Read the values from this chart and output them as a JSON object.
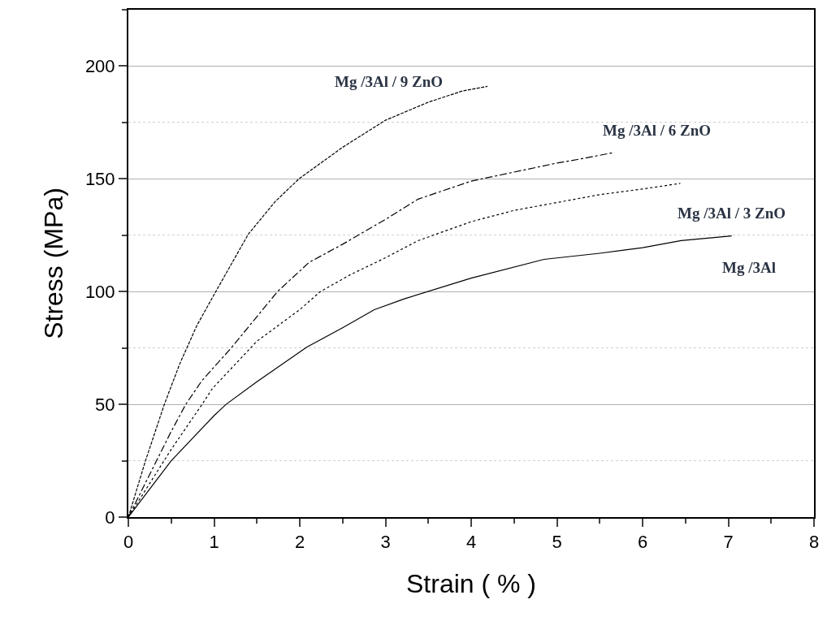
{
  "chart_data": {
    "type": "line",
    "xlabel": "Strain ( % )",
    "ylabel": "Stress (MPa)",
    "xlim": [
      0,
      8
    ],
    "xticks": [
      0,
      1,
      2,
      3,
      4,
      5,
      6,
      7,
      8
    ],
    "ylim": [
      0,
      225
    ],
    "yticks": [
      0,
      50,
      100,
      150,
      200
    ],
    "grid": "y",
    "legend": false,
    "marker": "none",
    "series": [
      {
        "name": "Mg /3Al",
        "color": "#000000",
        "line_style": "solid",
        "x": [
          0,
          0.5,
          1,
          1.14,
          1.5,
          2.08,
          2.5,
          2.87,
          3.22,
          4,
          4.85,
          5.5,
          6,
          6.45,
          7.04
        ],
        "values": [
          0,
          25,
          45,
          50,
          60,
          75.3,
          84,
          92,
          96.8,
          106,
          114.3,
          117,
          119.5,
          122.6,
          124.7
        ]
      },
      {
        "name": "Mg /3Al / 3 ZnO",
        "color": "#000000",
        "line_style": "dotted",
        "x": [
          0,
          0.5,
          0.86,
          0.98,
          1.5,
          2,
          2.24,
          2.59,
          3,
          3.38,
          4,
          4.5,
          5,
          5.5,
          6,
          6.44
        ],
        "values": [
          0,
          30,
          50,
          57,
          78,
          92,
          100,
          107.5,
          115,
          122.6,
          131,
          136,
          139.5,
          143,
          145.5,
          148
        ]
      },
      {
        "name": "Mg /3Al / 6 ZnO",
        "color": "#000000",
        "line_style": "dashdot",
        "x": [
          0,
          0.5,
          0.67,
          0.86,
          1.2,
          1.74,
          2.11,
          2.5,
          3,
          3.38,
          4,
          4.5,
          5,
          5.3,
          5.67
        ],
        "values": [
          0,
          38,
          50,
          60.6,
          75,
          100,
          113,
          121,
          132,
          141,
          149,
          153,
          157,
          159,
          161.7
        ]
      },
      {
        "name": "Mg /3Al / 9 ZnO",
        "color": "#000000",
        "line_style": "dashed",
        "x": [
          0,
          0.2,
          0.42,
          0.6,
          0.8,
          1.02,
          1.4,
          1.71,
          1.99,
          2.5,
          3,
          3.5,
          3.9,
          4.19
        ],
        "values": [
          0,
          25,
          50,
          68,
          85,
          100,
          125.5,
          139.8,
          150,
          164,
          176,
          184,
          189,
          191
        ]
      }
    ]
  }
}
